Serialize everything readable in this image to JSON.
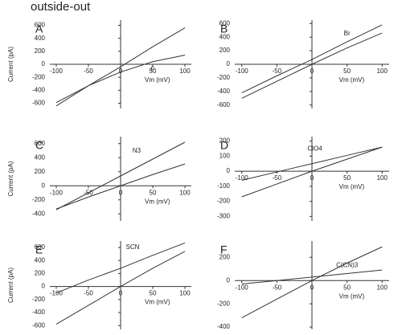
{
  "title": "outside-out",
  "chart_data": [
    {
      "type": "line",
      "panel_label": "A",
      "xlabel": "Vm (mV)",
      "ylabel": "Current (pA)",
      "x": [
        -100,
        -50,
        0,
        50,
        100
      ],
      "xlim": [
        -110,
        110
      ],
      "xticks": [
        -100,
        -50,
        0,
        50,
        100
      ],
      "ylim": [
        -680,
        680
      ],
      "yticks": [
        600,
        400,
        200,
        0,
        -200,
        -400,
        -600
      ],
      "series": [
        {
          "color": "#333333",
          "values": [
            -640,
            -330,
            -40,
            270,
            560
          ]
        },
        {
          "name": "F",
          "color": "#333333",
          "values": [
            -590,
            -330,
            -120,
            40,
            140
          ]
        }
      ]
    },
    {
      "type": "line",
      "panel_label": "B",
      "xlabel": "Vm (mV)",
      "x": [
        -100,
        -50,
        0,
        50,
        100
      ],
      "xlim": [
        -110,
        110
      ],
      "xticks": [
        -100,
        -50,
        0,
        50,
        100
      ],
      "ylim": [
        -650,
        650
      ],
      "yticks": [
        600,
        400,
        200,
        0,
        -200,
        -400,
        -600
      ],
      "series": [
        {
          "color": "#333333",
          "values": [
            -500,
            -250,
            0,
            240,
            460
          ]
        },
        {
          "name": "Br",
          "color": "#333333",
          "values": [
            -420,
            -170,
            70,
            330,
            580
          ]
        }
      ]
    },
    {
      "type": "line",
      "panel_label": "C",
      "xlabel": "Vm (mV)",
      "ylabel": "Current (pA)",
      "x": [
        -100,
        -50,
        0,
        50,
        100
      ],
      "xlim": [
        -110,
        110
      ],
      "xticks": [
        -100,
        -50,
        0,
        50,
        100
      ],
      "ylim": [
        -500,
        700
      ],
      "yticks": [
        600,
        400,
        200,
        0,
        -200,
        -400
      ],
      "series": [
        {
          "color": "#333333",
          "values": [
            -330,
            -160,
            0,
            160,
            310
          ]
        },
        {
          "name": "N3",
          "color": "#333333",
          "values": [
            -340,
            -100,
            140,
            380,
            620
          ]
        }
      ]
    },
    {
      "type": "line",
      "panel_label": "D",
      "xlabel": "Vm (mV)",
      "x": [
        -100,
        -50,
        0,
        50,
        100
      ],
      "xlim": [
        -110,
        110
      ],
      "xticks": [
        -100,
        -50,
        0,
        50,
        100
      ],
      "ylim": [
        -330,
        230
      ],
      "yticks": [
        200,
        100,
        0,
        -100,
        -200,
        -300
      ],
      "series": [
        {
          "color": "#333333",
          "values": [
            -170,
            -85,
            0,
            80,
            160
          ]
        },
        {
          "name": "ClO4",
          "color": "#333333",
          "values": [
            -60,
            -5,
            50,
            105,
            160
          ]
        }
      ]
    },
    {
      "type": "line",
      "panel_label": "E",
      "xlabel": "Vm (mV)",
      "ylabel": "Current (pA)",
      "x": [
        -100,
        -50,
        0,
        50,
        100
      ],
      "xlim": [
        -110,
        110
      ],
      "xticks": [
        -100,
        -50,
        0,
        50,
        100
      ],
      "ylim": [
        -660,
        700
      ],
      "yticks": [
        600,
        400,
        200,
        0,
        -200,
        -400,
        -600
      ],
      "series": [
        {
          "color": "#333333",
          "values": [
            -580,
            -290,
            0,
            280,
            540
          ]
        },
        {
          "name": "SCN",
          "color": "#333333",
          "values": [
            -100,
            100,
            280,
            480,
            670
          ]
        }
      ]
    },
    {
      "type": "line",
      "panel_label": "F",
      "xlabel": "Vm (mV)",
      "x": [
        -100,
        -50,
        0,
        50,
        100
      ],
      "xlim": [
        -110,
        110
      ],
      "xticks": [
        -100,
        -50,
        0,
        50,
        100
      ],
      "ylim": [
        -420,
        340
      ],
      "yticks": [
        200,
        0,
        -200,
        -400
      ],
      "series": [
        {
          "color": "#333333",
          "values": [
            -320,
            -160,
            0,
            150,
            290
          ]
        },
        {
          "name": "C(CN)3",
          "color": "#333333",
          "values": [
            -30,
            0,
            30,
            60,
            90
          ]
        }
      ]
    }
  ]
}
